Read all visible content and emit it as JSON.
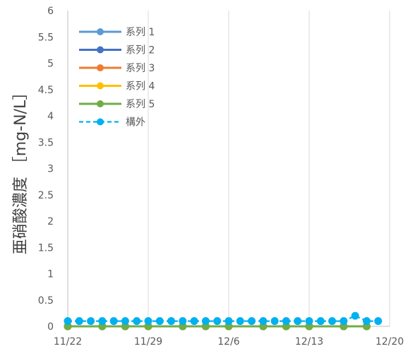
{
  "chart_data": {
    "type": "line",
    "title": "",
    "xlabel": "",
    "ylabel": "亜硝酸濃度 ［mg-N/L］",
    "x_tick_labels": [
      "11/22",
      "11/29",
      "12/6",
      "12/13",
      "12/20"
    ],
    "y_tick_labels": [
      "0",
      "0.5",
      "1",
      "1.5",
      "2",
      "2.5",
      "3",
      "3.5",
      "4",
      "4.5",
      "5",
      "5.5",
      "6"
    ],
    "x_range": [
      "11/22",
      "12/20"
    ],
    "ylim": [
      0,
      6
    ],
    "grid": "vertical",
    "legend_position": "top-left",
    "series": [
      {
        "name": "系列 1",
        "color": "#5B9BD5",
        "style": "solid",
        "points": [
          [
            "11/22",
            0
          ],
          [
            "11/25",
            0
          ],
          [
            "11/27",
            0
          ],
          [
            "11/29",
            0
          ],
          [
            "12/2",
            0
          ],
          [
            "12/4",
            0
          ],
          [
            "12/6",
            0
          ],
          [
            "12/9",
            0
          ],
          [
            "12/11",
            0
          ],
          [
            "12/13",
            0
          ],
          [
            "12/16",
            0
          ],
          [
            "12/18",
            0
          ]
        ]
      },
      {
        "name": "系列 2",
        "color": "#4472C4",
        "style": "solid",
        "points": [
          [
            "11/22",
            0
          ],
          [
            "11/25",
            0
          ],
          [
            "11/27",
            0
          ],
          [
            "11/29",
            0
          ],
          [
            "12/2",
            0
          ],
          [
            "12/4",
            0
          ],
          [
            "12/6",
            0
          ],
          [
            "12/9",
            0
          ],
          [
            "12/11",
            0
          ],
          [
            "12/13",
            0
          ],
          [
            "12/16",
            0
          ],
          [
            "12/18",
            0
          ]
        ]
      },
      {
        "name": "系列 3",
        "color": "#ED7D31",
        "style": "solid",
        "points": [
          [
            "11/22",
            0
          ],
          [
            "11/25",
            0
          ],
          [
            "11/27",
            0
          ],
          [
            "11/29",
            0
          ],
          [
            "12/2",
            0
          ],
          [
            "12/4",
            0
          ],
          [
            "12/6",
            0
          ],
          [
            "12/9",
            0
          ],
          [
            "12/11",
            0
          ],
          [
            "12/13",
            0
          ],
          [
            "12/16",
            0
          ],
          [
            "12/18",
            0
          ]
        ]
      },
      {
        "name": "系列 4",
        "color": "#FFC000",
        "style": "solid",
        "points": [
          [
            "11/22",
            0
          ],
          [
            "11/25",
            0
          ],
          [
            "11/27",
            0
          ],
          [
            "11/29",
            0
          ],
          [
            "12/2",
            0
          ],
          [
            "12/4",
            0
          ],
          [
            "12/6",
            0
          ],
          [
            "12/9",
            0
          ],
          [
            "12/11",
            0
          ],
          [
            "12/13",
            0
          ],
          [
            "12/16",
            0
          ],
          [
            "12/18",
            0
          ]
        ]
      },
      {
        "name": "系列 5",
        "color": "#70AD47",
        "style": "solid",
        "points": [
          [
            "11/22",
            0
          ],
          [
            "11/25",
            0
          ],
          [
            "11/27",
            0
          ],
          [
            "11/29",
            0
          ],
          [
            "12/2",
            0
          ],
          [
            "12/4",
            0
          ],
          [
            "12/6",
            0
          ],
          [
            "12/9",
            0
          ],
          [
            "12/11",
            0
          ],
          [
            "12/13",
            0
          ],
          [
            "12/16",
            0
          ],
          [
            "12/18",
            0
          ]
        ]
      },
      {
        "name": "構外",
        "color": "#00B0F0",
        "style": "dashed",
        "points": [
          [
            "11/22",
            0.1
          ],
          [
            "11/23",
            0.1
          ],
          [
            "11/24",
            0.1
          ],
          [
            "11/25",
            0.1
          ],
          [
            "11/26",
            0.1
          ],
          [
            "11/27",
            0.1
          ],
          [
            "11/28",
            0.1
          ],
          [
            "11/29",
            0.1
          ],
          [
            "11/30",
            0.1
          ],
          [
            "12/1",
            0.1
          ],
          [
            "12/2",
            0.1
          ],
          [
            "12/3",
            0.1
          ],
          [
            "12/4",
            0.1
          ],
          [
            "12/5",
            0.1
          ],
          [
            "12/6",
            0.1
          ],
          [
            "12/7",
            0.1
          ],
          [
            "12/8",
            0.1
          ],
          [
            "12/9",
            0.1
          ],
          [
            "12/10",
            0.1
          ],
          [
            "12/11",
            0.1
          ],
          [
            "12/12",
            0.1
          ],
          [
            "12/13",
            0.1
          ],
          [
            "12/14",
            0.1
          ],
          [
            "12/15",
            0.1
          ],
          [
            "12/16",
            0.1
          ],
          [
            "12/17",
            0.2
          ],
          [
            "12/18",
            0.1
          ],
          [
            "12/19",
            0.1
          ]
        ]
      }
    ]
  }
}
